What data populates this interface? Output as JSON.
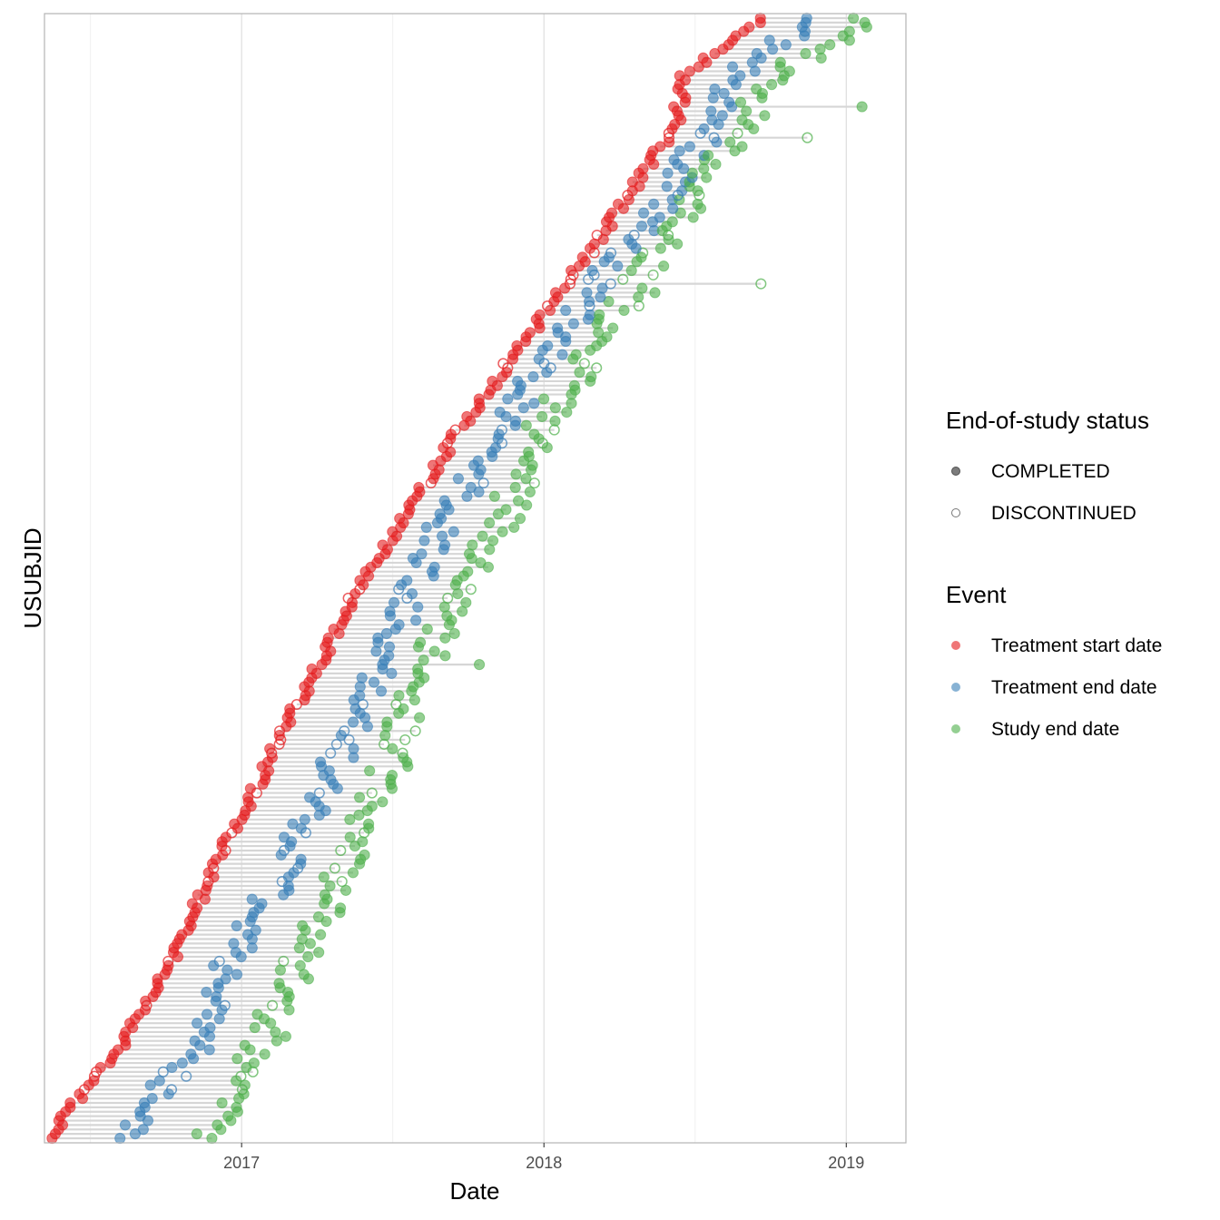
{
  "chart_data": {
    "type": "scatter",
    "title": "",
    "xlabel": "Date",
    "ylabel": "USUBJID",
    "x_axis_type": "date",
    "xlim": [
      "2016-05-08",
      "2019-03-14"
    ],
    "x_ticks": [
      {
        "date": "2017-01-01",
        "label": "2017"
      },
      {
        "date": "2018-01-01",
        "label": "2018"
      },
      {
        "date": "2019-01-01",
        "label": "2019"
      }
    ],
    "grid": true,
    "y_tick_labels_shown": false,
    "connector_lines": "each subject's dates are joined by a light grey horizontal segment",
    "legend_position": "right",
    "legends": {
      "status": {
        "title": "End-of-study status",
        "items": [
          {
            "label": "COMPLETED",
            "marker": "filled",
            "color": "#555555"
          },
          {
            "label": "DISCONTINUED",
            "marker": "open",
            "color": "#555555"
          }
        ]
      },
      "event": {
        "title": "Event",
        "items": [
          {
            "label": "Treatment start date",
            "color": "#E41A1C"
          },
          {
            "label": "Treatment end date",
            "color": "#377EB8"
          },
          {
            "label": "Study end date",
            "color": "#4DAF4A"
          }
        ]
      }
    },
    "subject_count": 254,
    "trend_points": {
      "y_index": [
        0,
        10,
        20,
        40,
        60,
        80,
        100,
        120,
        140,
        160,
        180,
        200,
        210,
        220,
        230,
        240,
        254
      ],
      "treatment_start": [
        "2016-05-15",
        "2016-06-20",
        "2016-08-05",
        "2016-10-10",
        "2016-11-25",
        "2017-01-20",
        "2017-03-15",
        "2017-05-10",
        "2017-07-15",
        "2017-09-20",
        "2017-12-10",
        "2018-02-25",
        "2018-04-01",
        "2018-05-10",
        "2018-06-10",
        "2018-06-20",
        "2018-09-30"
      ],
      "treatment_end": [
        "2016-08-15",
        "2016-09-20",
        "2016-11-05",
        "2016-12-20",
        "2017-02-20",
        "2017-04-10",
        "2017-06-05",
        "2017-07-20",
        "2017-09-05",
        "2017-11-10",
        "2018-01-20",
        "2018-04-01",
        "2018-05-25",
        "2018-06-20",
        "2018-07-30",
        "2018-08-20",
        "2018-11-30"
      ],
      "study_end": [
        "2016-11-20",
        "2016-12-20",
        "2017-01-25",
        "2017-03-10",
        "2017-05-05",
        "2017-06-20",
        "2017-07-30",
        "2017-09-05",
        "2017-11-15",
        "2017-12-25",
        "2018-03-10",
        "2018-05-20",
        "2018-06-20",
        "2018-07-20",
        "2018-08-30",
        "2018-10-10",
        "2019-02-05"
      ]
    },
    "outlier_study_end": [
      {
        "y_index": 107,
        "date": "2017-10-15"
      },
      {
        "y_index": 191,
        "date": "2018-05-15"
      },
      {
        "y_index": 193,
        "date": "2018-09-20"
      },
      {
        "y_index": 226,
        "date": "2018-11-15"
      },
      {
        "y_index": 233,
        "date": "2019-01-20"
      }
    ]
  }
}
